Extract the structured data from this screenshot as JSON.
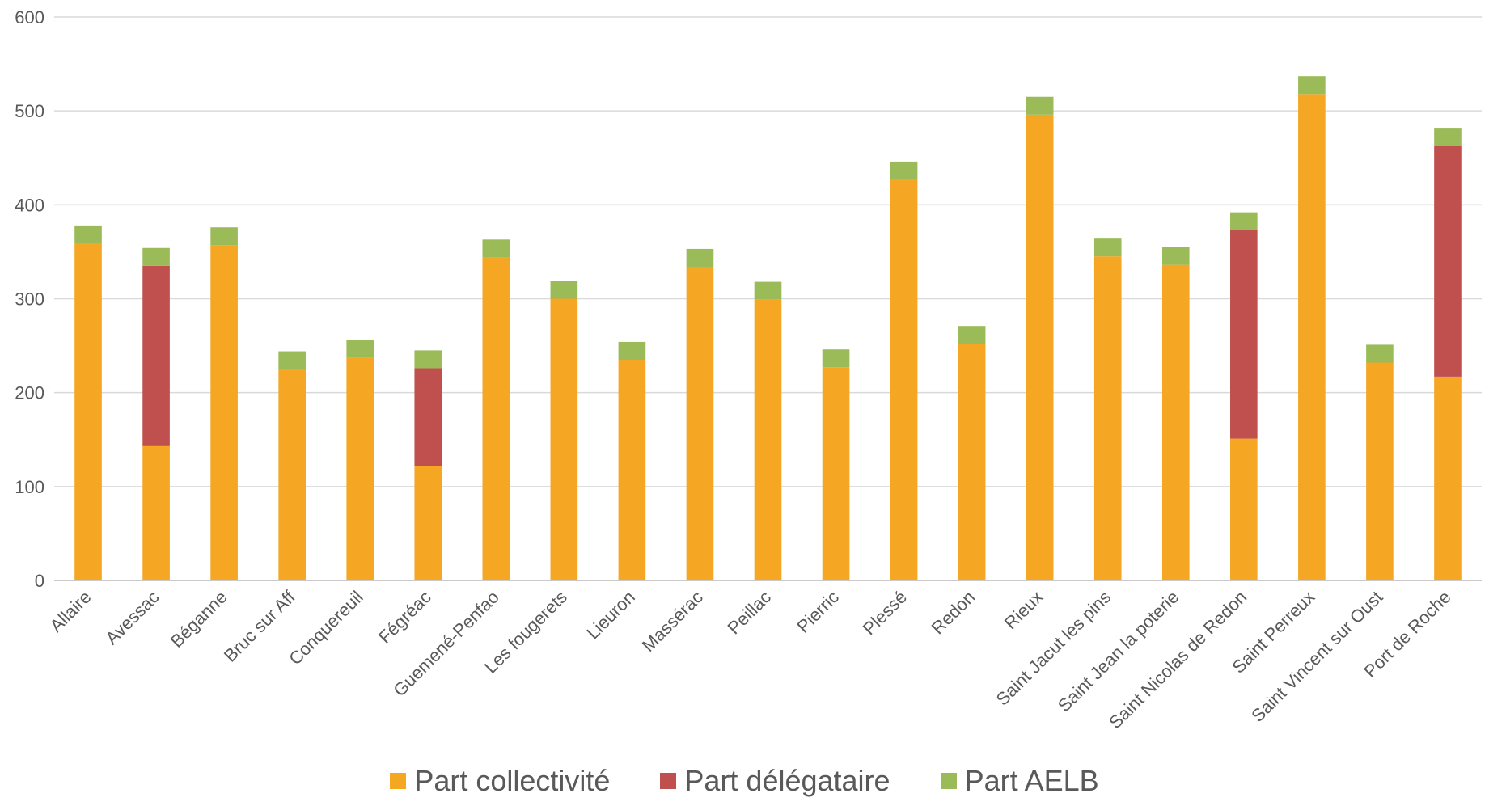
{
  "chart_data": {
    "type": "bar",
    "stacked": true,
    "categories": [
      "Allaire",
      "Avessac",
      "Béganne",
      "Bruc sur Aff",
      "Conquereuil",
      "Fégréac",
      "Guemené-Penfao",
      "Les fougerets",
      "Lieuron",
      "Massérac",
      "Peillac",
      "Pierric",
      "Plessé",
      "Redon",
      "Rieux",
      "Saint Jacut les pins",
      "Saint Jean la poterie",
      "Saint Nicolas de Redon",
      "Saint Perreux",
      "Saint Vincent sur Oust",
      "Port de Roche"
    ],
    "series": [
      {
        "name": "Part collectivité",
        "color": "#F5A623",
        "values": [
          359,
          143,
          357,
          225,
          237,
          122,
          344,
          300,
          235,
          334,
          299,
          227,
          427,
          252,
          496,
          345,
          336,
          151,
          518,
          232,
          217
        ]
      },
      {
        "name": "Part délégataire",
        "color": "#C0504D",
        "values": [
          0,
          192,
          0,
          0,
          0,
          104,
          0,
          0,
          0,
          0,
          0,
          0,
          0,
          0,
          0,
          0,
          0,
          222,
          0,
          0,
          246
        ]
      },
      {
        "name": "Part AELB",
        "color": "#9BBB59",
        "values": [
          19,
          19,
          19,
          19,
          19,
          19,
          19,
          19,
          19,
          19,
          19,
          19,
          19,
          19,
          19,
          19,
          19,
          19,
          19,
          19,
          19
        ]
      }
    ],
    "ylim": [
      0,
      600
    ],
    "yticks": [
      "0",
      "100",
      "200",
      "300",
      "400",
      "500",
      "600"
    ],
    "grid": true,
    "legend_position": "bottom",
    "title": "",
    "xlabel": "",
    "ylabel": ""
  },
  "legend": {
    "items": [
      {
        "label": "Part collectivité",
        "color": "#F5A623"
      },
      {
        "label": "Part délégataire",
        "color": "#C0504D"
      },
      {
        "label": "Part AELB",
        "color": "#9BBB59"
      }
    ]
  }
}
